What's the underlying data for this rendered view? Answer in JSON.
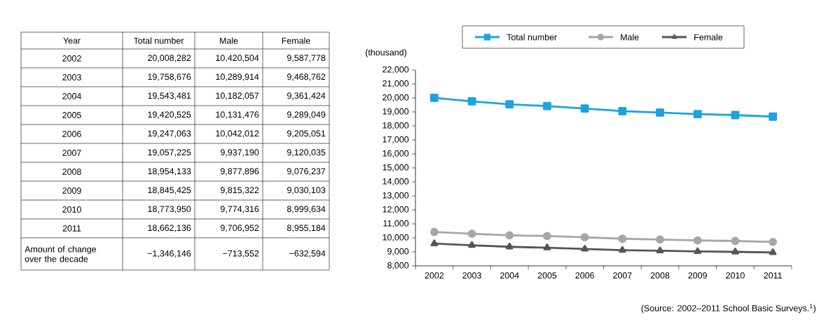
{
  "chart_data": {
    "type": "line",
    "ylabel": "(thousand)",
    "categories": [
      "2002",
      "2003",
      "2004",
      "2005",
      "2006",
      "2007",
      "2008",
      "2009",
      "2010",
      "2011"
    ],
    "series": [
      {
        "name": "Total number",
        "color": "#1aa3e0",
        "marker": "square",
        "values": [
          20008,
          19759,
          19543,
          19421,
          19247,
          19057,
          18954,
          18845,
          18774,
          18662
        ]
      },
      {
        "name": "Male",
        "color": "#a6a6a6",
        "marker": "circle",
        "values": [
          10421,
          10290,
          10182,
          10131,
          10042,
          9937,
          9878,
          9815,
          9774,
          9707
        ]
      },
      {
        "name": "Female",
        "color": "#555555",
        "marker": "triangle",
        "values": [
          9588,
          9469,
          9361,
          9289,
          9205,
          9120,
          9076,
          9030,
          9000,
          8955
        ]
      }
    ],
    "ylim": [
      8000,
      22000
    ],
    "yticks": [
      {
        "value": 8000,
        "label": "8,000"
      },
      {
        "value": 9000,
        "label": "9,000"
      },
      {
        "value": 10000,
        "label": "10,000"
      },
      {
        "value": 11000,
        "label": "11,000"
      },
      {
        "value": 12000,
        "label": "12,000"
      },
      {
        "value": 13000,
        "label": "13,000"
      },
      {
        "value": 14000,
        "label": "14,000"
      },
      {
        "value": 15000,
        "label": "15,000"
      },
      {
        "value": 16000,
        "label": "16,000"
      },
      {
        "value": 17000,
        "label": "17,000"
      },
      {
        "value": 18000,
        "label": "18,000"
      },
      {
        "value": 19000,
        "label": "19,000"
      },
      {
        "value": 20000,
        "label": "20,000"
      },
      {
        "value": 21000,
        "label": "21,000"
      },
      {
        "value": 22000,
        "label": "22,000"
      }
    ],
    "legend": "top",
    "grid": false,
    "line_style": "solid",
    "annotations": [
      "Year",
      "20,008,282",
      "10,420,504",
      "9,587,778",
      "19,758,676",
      "10,289,914",
      "9,468,762",
      "19,543,481",
      "10,182,057",
      "9,361,424",
      "19,420,525",
      "10,131,476",
      "9,289,049",
      "19,247,063",
      "10,042,012",
      "9,205,051",
      "19,057,225",
      "9,937,190",
      "9,120,035",
      "18,954,133",
      "9,877,896",
      "9,076,237",
      "18,845,425",
      "9,815,322",
      "9,030,103",
      "18,773,950",
      "9,774,316",
      "8,999,634",
      "18,662,136",
      "9,706,952",
      "8,955,184",
      "Amount of change over the decade",
      "−1,346,146",
      "−713,552",
      "−632,594",
      "(Source: 2002–2011 School Basic Surveys.$^{1}$)"
    ]
  }
}
